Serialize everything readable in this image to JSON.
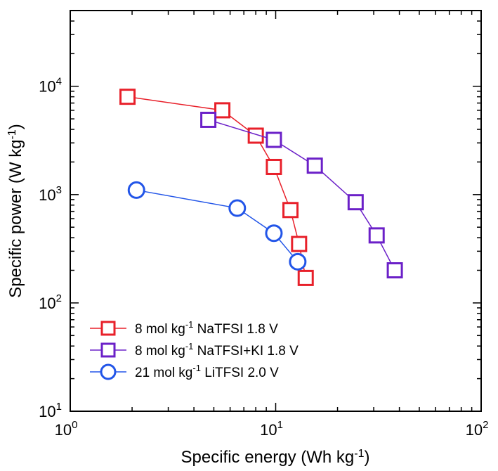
{
  "chart_data": {
    "type": "scatter",
    "xscale": "log",
    "yscale": "log",
    "xlim": [
      1,
      100
    ],
    "ylim": [
      10,
      50000
    ],
    "xlabel": "Specific energy (Wh kg⁻¹)",
    "ylabel": "Specific power (W kg⁻¹)",
    "x_ticks": [
      {
        "value": 1,
        "base": "10",
        "exp": "0"
      },
      {
        "value": 10,
        "base": "10",
        "exp": "1"
      },
      {
        "value": 100,
        "base": "10",
        "exp": "2"
      }
    ],
    "y_ticks": [
      {
        "value": 10,
        "base": "10",
        "exp": "1"
      },
      {
        "value": 100,
        "base": "10",
        "exp": "2"
      },
      {
        "value": 1000,
        "base": "10",
        "exp": "3"
      },
      {
        "value": 10000,
        "base": "10",
        "exp": "4"
      }
    ],
    "grid": false,
    "legend_position": "bottom-left",
    "series": [
      {
        "name": "8 mol kg⁻¹ NaTFSI 1.8 V",
        "legend_text": {
          "pre": "8 mol kg",
          "sup": "-1",
          "post": " NaTFSI 1.8 V"
        },
        "marker": "square",
        "color": "#e8202a",
        "x": [
          1.9,
          5.5,
          8.0,
          9.8,
          11.8,
          13.0,
          14.0
        ],
        "y": [
          8000,
          6000,
          3500,
          1800,
          720,
          350,
          170
        ]
      },
      {
        "name": "8 mol kg⁻¹ NaTFSI+KI 1.8 V",
        "legend_text": {
          "pre": "8 mol kg",
          "sup": "-1",
          "post": " NaTFSI+KI 1.8 V"
        },
        "marker": "square",
        "color": "#6b20c8",
        "x": [
          4.7,
          9.8,
          15.5,
          24.5,
          31.0,
          38.0
        ],
        "y": [
          4900,
          3200,
          1850,
          850,
          420,
          200
        ]
      },
      {
        "name": "21 mol kg⁻¹ LiTFSI 2.0 V",
        "legend_text": {
          "pre": "21 mol kg",
          "sup": "-1",
          "post": " LiTFSI 2.0 V"
        },
        "marker": "circle",
        "color": "#2255e8",
        "x": [
          2.1,
          6.5,
          9.8,
          12.8
        ],
        "y": [
          1100,
          750,
          440,
          240
        ]
      }
    ]
  }
}
